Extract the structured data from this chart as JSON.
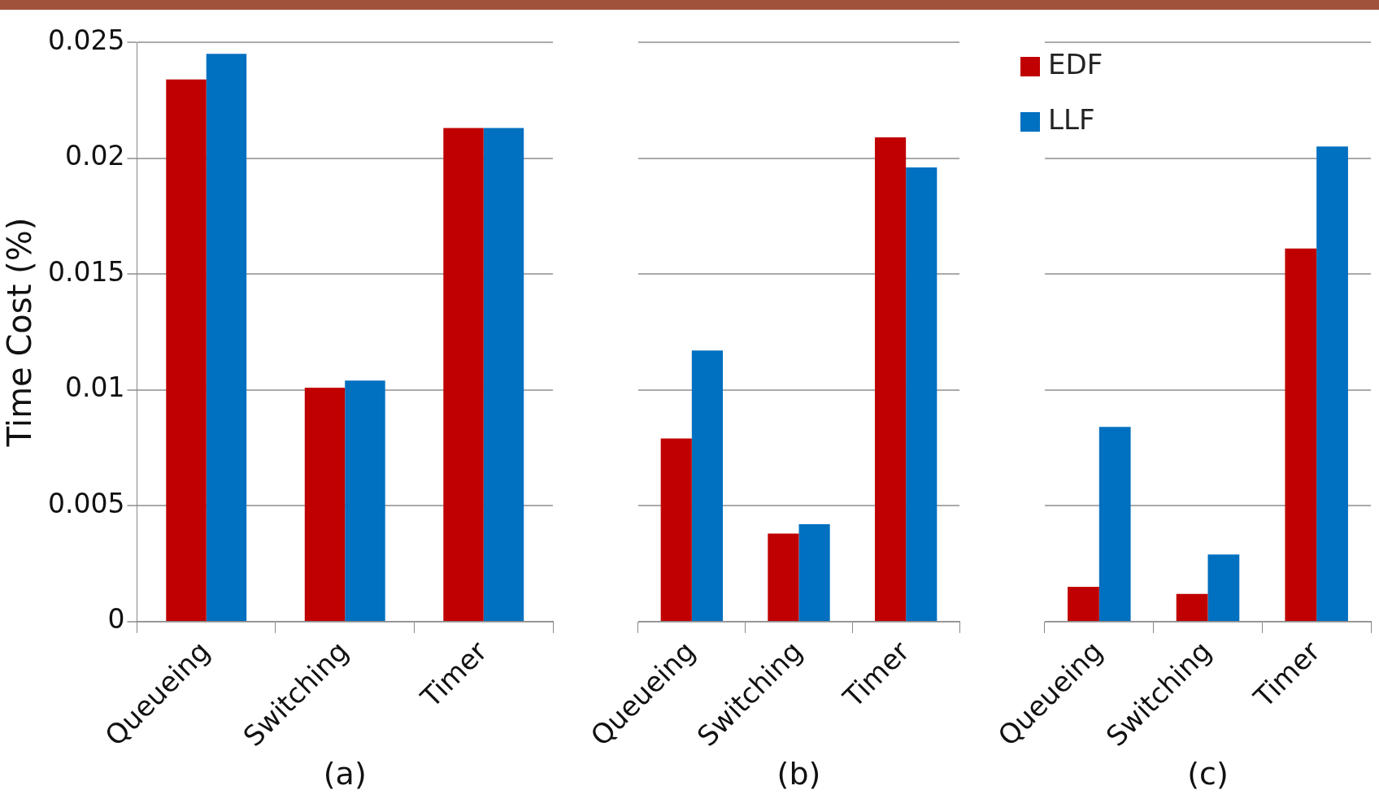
{
  "chart_data": [
    {
      "type": "bar",
      "xlabel": "(a)",
      "ylabel": "Time Cost (%)",
      "categories": [
        "Queueing",
        "Switching",
        "Timer"
      ],
      "series": [
        {
          "color": "#c00000",
          "values": [
            0.0234,
            0.0101,
            0.0213
          ]
        },
        {
          "color": "#0070c0",
          "values": [
            0.0245,
            0.0104,
            0.0213
          ]
        }
      ],
      "ylim": [
        0,
        0.025
      ],
      "yticks": [
        0,
        0.005,
        0.01,
        0.015,
        0.02,
        0.025
      ],
      "grid": "y"
    },
    {
      "type": "bar",
      "xlabel": "(b)",
      "categories": [
        "Queueing",
        "Switching",
        "Timer"
      ],
      "series": [
        {
          "color": "#c00000",
          "values": [
            0.0079,
            0.0038,
            0.0209
          ]
        },
        {
          "color": "#0070c0",
          "values": [
            0.0117,
            0.0042,
            0.0196
          ]
        }
      ],
      "ylim": [
        0,
        0.025
      ],
      "yticks": [
        0,
        0.005,
        0.01,
        0.015,
        0.02,
        0.025
      ],
      "grid": "y",
      "tick_labels": "x"
    },
    {
      "type": "bar",
      "xlabel": "(c)",
      "categories": [
        "Queueing",
        "Switching",
        "Timer"
      ],
      "series": [
        {
          "name": "EDF",
          "color": "#c00000",
          "values": [
            0.0015,
            0.0012,
            0.0161
          ]
        },
        {
          "name": "LLF",
          "color": "#0070c0",
          "values": [
            0.0084,
            0.0029,
            0.0205
          ]
        }
      ],
      "ylim": [
        0,
        0.025
      ],
      "yticks": [
        0,
        0.005,
        0.01,
        0.015,
        0.02,
        0.025
      ],
      "grid": "y",
      "tick_labels": "x",
      "legend": "top left"
    }
  ]
}
